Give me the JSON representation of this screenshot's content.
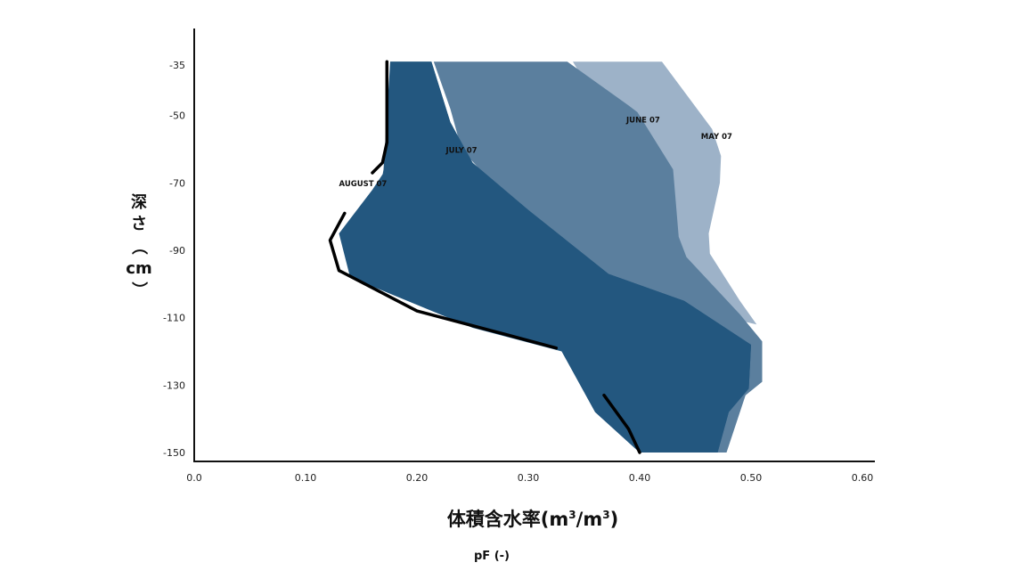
{
  "chart_data": {
    "type": "area",
    "xlabel": "体積含水率(m³/m³)",
    "xlabel_base": "体積含水率(m",
    "xlabel_mid": "/m",
    "xlabel_end": ")",
    "xlabel_sup": "3",
    "subtitle": "pF (-)",
    "ylabel": "深さ（cm）",
    "ylabel_chars": [
      "深",
      "さ",
      "（",
      "cm",
      "）"
    ],
    "xlim": [
      0.0,
      0.6
    ],
    "ylim": [
      -153,
      -30
    ],
    "grid": false,
    "legend": "none",
    "x_ticks": [
      {
        "value": 0.0,
        "label": "0.0"
      },
      {
        "value": 0.1,
        "label": "0.10"
      },
      {
        "value": 0.2,
        "label": "0.20"
      },
      {
        "value": 0.3,
        "label": "0.30"
      },
      {
        "value": 0.4,
        "label": "0.40"
      },
      {
        "value": 0.5,
        "label": "0.50"
      },
      {
        "value": 0.6,
        "label": "0.60"
      }
    ],
    "y_ticks": [
      {
        "value": -35,
        "label": "-35"
      },
      {
        "value": -50,
        "label": "-50"
      },
      {
        "value": -70,
        "label": "-70"
      },
      {
        "value": -90,
        "label": "-90"
      },
      {
        "value": -110,
        "label": "-110"
      },
      {
        "value": -130,
        "label": "-130"
      },
      {
        "value": -150,
        "label": "-150"
      }
    ],
    "series": [
      {
        "name": "MAY 07",
        "color": "#9db2c8",
        "points": [
          [
            0.34,
            -34
          ],
          [
            0.42,
            -34
          ],
          [
            0.465,
            -54
          ],
          [
            0.473,
            -62
          ],
          [
            0.472,
            -70
          ],
          [
            0.462,
            -85
          ],
          [
            0.463,
            -91
          ],
          [
            0.49,
            -105
          ],
          [
            0.505,
            -112
          ],
          [
            0.4,
            -104
          ],
          [
            0.36,
            -45
          ],
          [
            0.34,
            -34
          ]
        ]
      },
      {
        "name": "JUNE 07",
        "color": "#5b7f9e",
        "points": [
          [
            0.215,
            -34
          ],
          [
            0.335,
            -34
          ],
          [
            0.39,
            -47
          ],
          [
            0.398,
            -49
          ],
          [
            0.43,
            -66
          ],
          [
            0.435,
            -86
          ],
          [
            0.442,
            -92
          ],
          [
            0.49,
            -109
          ],
          [
            0.51,
            -117
          ],
          [
            0.51,
            -129
          ],
          [
            0.495,
            -133
          ],
          [
            0.478,
            -150
          ],
          [
            0.462,
            -150
          ],
          [
            0.47,
            -145
          ],
          [
            0.47,
            -120
          ],
          [
            0.35,
            -100
          ],
          [
            0.24,
            -60
          ],
          [
            0.23,
            -48
          ],
          [
            0.215,
            -34
          ]
        ]
      },
      {
        "name": "JULY 07",
        "color": "#23577f",
        "points": [
          [
            0.176,
            -34
          ],
          [
            0.213,
            -34
          ],
          [
            0.23,
            -52
          ],
          [
            0.25,
            -64
          ],
          [
            0.3,
            -78
          ],
          [
            0.372,
            -97
          ],
          [
            0.44,
            -105
          ],
          [
            0.5,
            -118
          ],
          [
            0.498,
            -131
          ],
          [
            0.48,
            -138
          ],
          [
            0.47,
            -150
          ],
          [
            0.4,
            -150
          ],
          [
            0.36,
            -138
          ],
          [
            0.33,
            -120
          ],
          [
            0.16,
            -85
          ],
          [
            0.17,
            -66
          ],
          [
            0.176,
            -34
          ]
        ]
      },
      {
        "name": "AUGUST 07",
        "color": "#23577f",
        "points": [
          [
            0.176,
            -34
          ],
          [
            0.174,
            -65
          ],
          [
            0.16,
            -72
          ],
          [
            0.13,
            -85
          ],
          [
            0.14,
            -98
          ],
          [
            0.25,
            -113
          ],
          [
            0.33,
            -120
          ],
          [
            0.36,
            -138
          ],
          [
            0.4,
            -150
          ],
          [
            0.47,
            -150
          ],
          [
            0.48,
            -138
          ],
          [
            0.498,
            -131
          ],
          [
            0.5,
            -118
          ],
          [
            0.44,
            -105
          ],
          [
            0.372,
            -97
          ],
          [
            0.3,
            -78
          ],
          [
            0.25,
            -64
          ],
          [
            0.23,
            -52
          ],
          [
            0.213,
            -34
          ],
          [
            0.176,
            -34
          ]
        ]
      }
    ],
    "boundary_lines": [
      [
        [
          0.173,
          -34
        ],
        [
          0.173,
          -58
        ],
        [
          0.169,
          -64
        ],
        [
          0.16,
          -67
        ]
      ],
      [
        [
          0.135,
          -79
        ],
        [
          0.122,
          -87
        ],
        [
          0.13,
          -96
        ],
        [
          0.2,
          -108
        ],
        [
          0.28,
          -115
        ],
        [
          0.325,
          -119
        ]
      ],
      [
        [
          0.368,
          -133
        ],
        [
          0.39,
          -143
        ],
        [
          0.4,
          -150
        ]
      ]
    ],
    "annotations": [
      {
        "text": "MAY 07",
        "x": 0.455,
        "y": -57
      },
      {
        "text": "JUNE 07",
        "x": 0.388,
        "y": -52
      },
      {
        "text": "JULY 07",
        "x": 0.226,
        "y": -61
      },
      {
        "text": "AUGUST 07",
        "x": 0.13,
        "y": -71
      }
    ]
  }
}
